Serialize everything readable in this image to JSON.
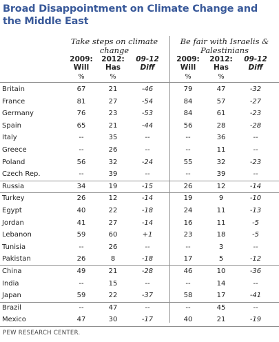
{
  "title": "Broad Disappointment on Climate Change and the Middle East",
  "groups": [
    {
      "heading": "Take steps on climate change"
    },
    {
      "heading": "Be fair with Israelis & Palestinians"
    }
  ],
  "columns": {
    "c2009": {
      "line1": "2009:",
      "line2": "Will"
    },
    "c2012": {
      "line1": "2012:",
      "line2": "Has"
    },
    "diff": {
      "line1": "09-12",
      "line2": "Diff"
    },
    "pct": "%"
  },
  "rows": [
    {
      "country": "Britain",
      "v": [
        "67",
        "21",
        "-46",
        "79",
        "47",
        "-32"
      ]
    },
    {
      "country": "France",
      "v": [
        "81",
        "27",
        "-54",
        "84",
        "57",
        "-27"
      ]
    },
    {
      "country": "Germany",
      "v": [
        "76",
        "23",
        "-53",
        "84",
        "61",
        "-23"
      ]
    },
    {
      "country": "Spain",
      "v": [
        "65",
        "21",
        "-44",
        "56",
        "28",
        "-28"
      ]
    },
    {
      "country": "Italy",
      "v": [
        "--",
        "35",
        "--",
        "--",
        "36",
        "--"
      ]
    },
    {
      "country": "Greece",
      "v": [
        "--",
        "26",
        "--",
        "--",
        "11",
        "--"
      ]
    },
    {
      "country": "Poland",
      "v": [
        "56",
        "32",
        "-24",
        "55",
        "32",
        "-23"
      ]
    },
    {
      "country": "Czech Rep.",
      "v": [
        "--",
        "39",
        "--",
        "--",
        "39",
        "--"
      ]
    },
    {
      "country": "Russia",
      "v": [
        "34",
        "19",
        "-15",
        "26",
        "12",
        "-14"
      ]
    },
    {
      "country": "Turkey",
      "v": [
        "26",
        "12",
        "-14",
        "19",
        "9",
        "-10"
      ]
    },
    {
      "country": "Egypt",
      "v": [
        "40",
        "22",
        "-18",
        "24",
        "11",
        "-13"
      ]
    },
    {
      "country": "Jordan",
      "v": [
        "41",
        "27",
        "-14",
        "16",
        "11",
        "-5"
      ]
    },
    {
      "country": "Lebanon",
      "v": [
        "59",
        "60",
        "+1",
        "23",
        "18",
        "-5"
      ]
    },
    {
      "country": "Tunisia",
      "v": [
        "--",
        "26",
        "--",
        "--",
        "3",
        "--"
      ]
    },
    {
      "country": "Pakistan",
      "v": [
        "26",
        "8",
        "-18",
        "17",
        "5",
        "-12"
      ]
    },
    {
      "country": "China",
      "v": [
        "49",
        "21",
        "-28",
        "46",
        "10",
        "-36"
      ]
    },
    {
      "country": "India",
      "v": [
        "--",
        "15",
        "--",
        "--",
        "14",
        "--"
      ]
    },
    {
      "country": "Japan",
      "v": [
        "59",
        "22",
        "-37",
        "58",
        "17",
        "-41"
      ]
    },
    {
      "country": "Brazil",
      "v": [
        "--",
        "47",
        "--",
        "--",
        "45",
        "--"
      ]
    },
    {
      "country": "Mexico",
      "v": [
        "47",
        "30",
        "-17",
        "40",
        "21",
        "-19"
      ]
    }
  ],
  "source": "PEW RESEARCH CENTER."
}
